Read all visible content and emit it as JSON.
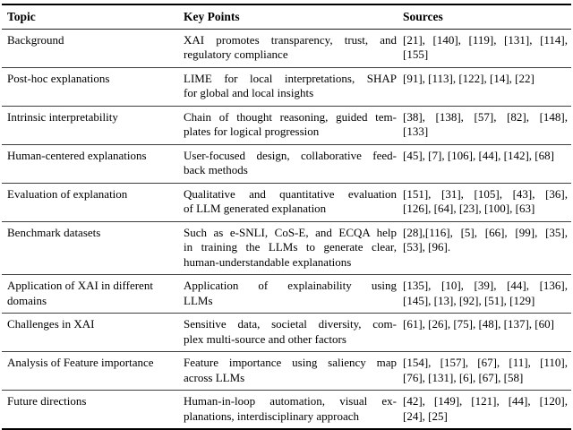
{
  "table": {
    "columns": [
      "Topic",
      "Key Points",
      "Sources"
    ],
    "rows": [
      {
        "topic": [
          "Background"
        ],
        "key_points": [
          "XAI promotes transparency, trust, and",
          "regulatory compliance"
        ],
        "sources": [
          "[21], [140], [119], [131], [114],",
          "[155]"
        ]
      },
      {
        "topic": [
          "Post-hoc explanations"
        ],
        "key_points": [
          "LIME for local interpretations, SHAP",
          "for global and local insights"
        ],
        "sources": [
          "[91], [113], [122], [14], [22]"
        ]
      },
      {
        "topic": [
          "Intrinsic interpretability"
        ],
        "key_points": [
          "Chain of thought reasoning, guided tem-",
          "plates for logical progression"
        ],
        "sources": [
          "[38], [138], [57], [82], [148],",
          "[133]"
        ]
      },
      {
        "topic": [
          "Human-centered explanations"
        ],
        "key_points": [
          "User-focused design, collaborative feed-",
          "back methods"
        ],
        "sources": [
          "[45], [7], [106], [44], [142], [68]"
        ]
      },
      {
        "topic": [
          "Evaluation of explanation"
        ],
        "key_points": [
          "Qualitative and quantitative evaluation",
          "of LLM generated explanation"
        ],
        "sources": [
          "[151], [31], [105], [43], [36],",
          "[126], [64], [23], [100], [63]"
        ]
      },
      {
        "topic": [
          "Benchmark datasets"
        ],
        "key_points": [
          "Such as e-SNLI, CoS-E, and ECQA help",
          "in training the LLMs to generate clear,",
          "human-understandable explanations"
        ],
        "sources": [
          "[28],[116], [5], [66], [99], [35],",
          "[53], [96]."
        ]
      },
      {
        "topic": [
          "Application of XAI in different",
          "domains"
        ],
        "key_points": [
          "Application of explainability using",
          "LLMs"
        ],
        "sources": [
          "[135], [10], [39], [44], [136],",
          "[145], [13], [92], [51], [129]"
        ]
      },
      {
        "topic": [
          "Challenges in XAI"
        ],
        "key_points": [
          "Sensitive data, societal diversity, com-",
          "plex multi-source and other factors"
        ],
        "sources": [
          "[61], [26], [75], [48], [137], [60]"
        ]
      },
      {
        "topic": [
          "Analysis of Feature importance"
        ],
        "key_points": [
          "Feature importance using saliency map",
          "across LLMs"
        ],
        "sources": [
          "[154], [157], [67], [11], [110],",
          "[76], [131], [6], [67], [58]"
        ]
      },
      {
        "topic": [
          "Future directions"
        ],
        "key_points": [
          "Human-in-loop automation, visual ex-",
          "planations, interdisciplinary approach"
        ],
        "sources": [
          "[42], [149], [121], [44], [120],",
          "[24], [25]"
        ]
      }
    ]
  }
}
